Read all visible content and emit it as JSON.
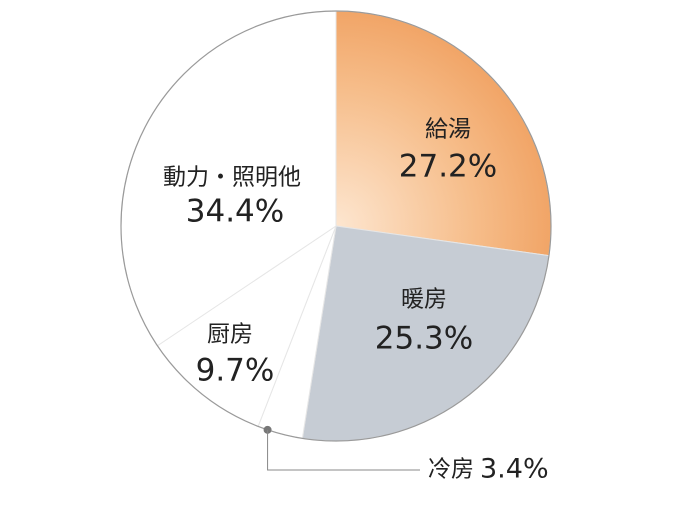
{
  "chart_data": {
    "type": "pie",
    "categories": [
      "給湯",
      "暖房",
      "冷房",
      "厨房",
      "動力・照明他"
    ],
    "values": [
      27.2,
      25.3,
      3.4,
      9.7,
      34.4
    ],
    "value_labels": [
      "27.2%",
      "25.3%",
      "3.4%",
      "9.7%",
      "34.4%"
    ],
    "colors": [
      "#f1a466",
      "#c6ccd4",
      "#ffffff",
      "#ffffff",
      "#ffffff"
    ]
  }
}
